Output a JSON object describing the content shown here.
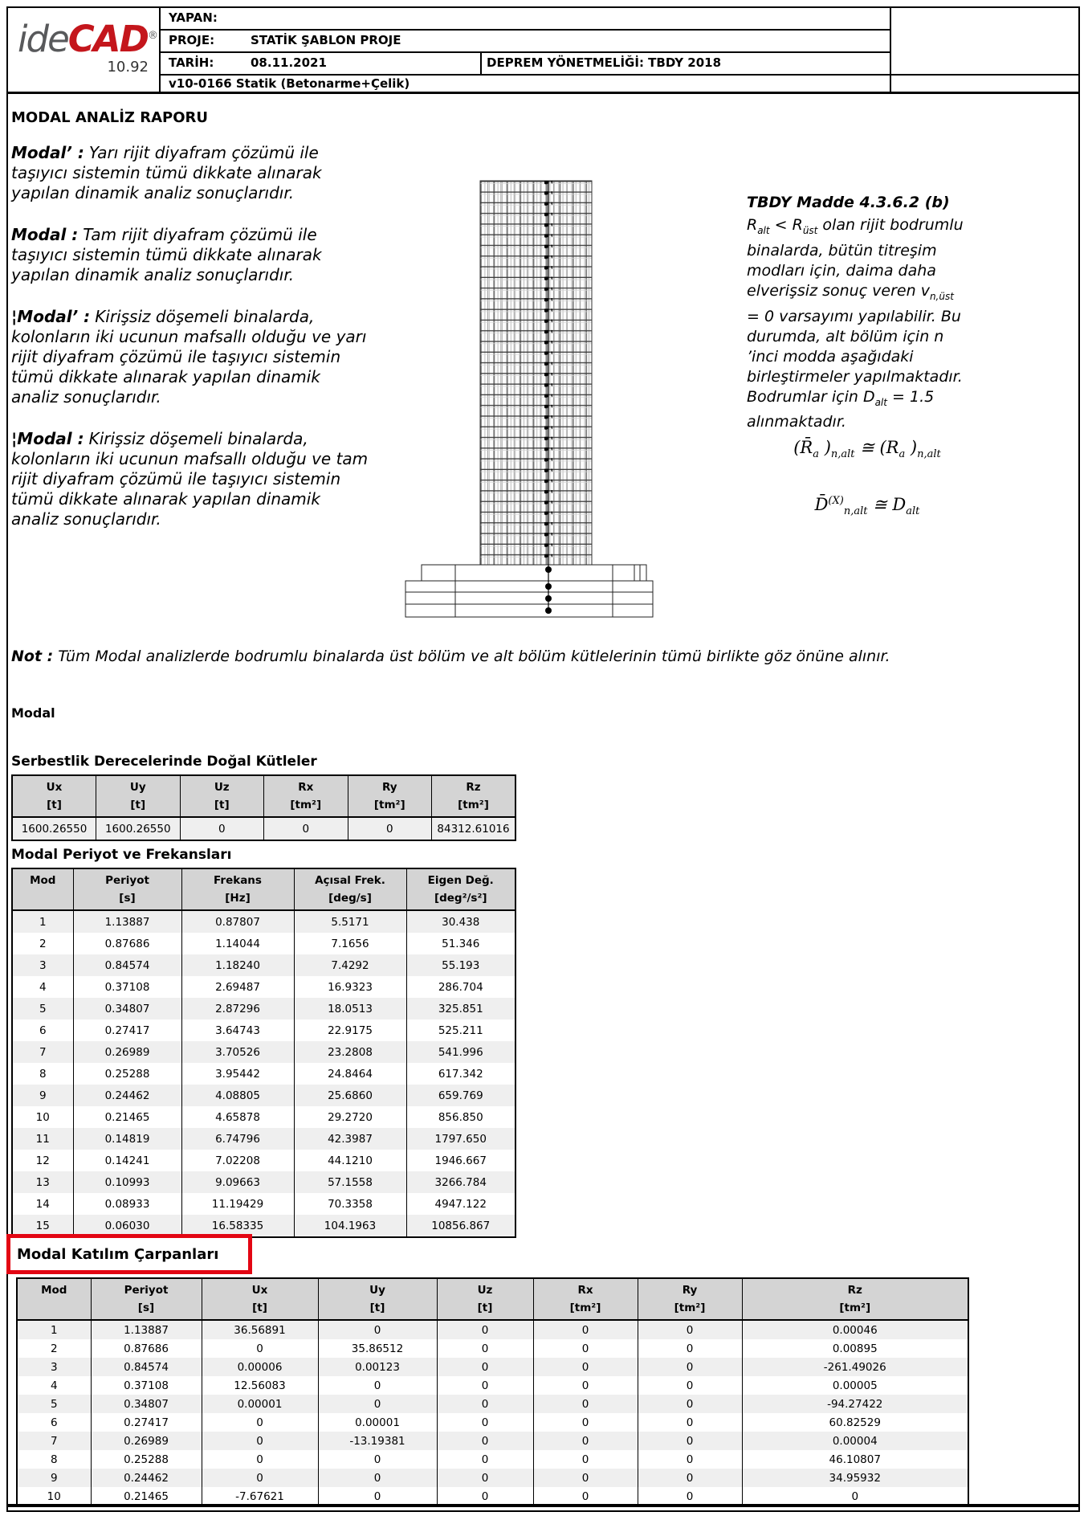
{
  "colors": {
    "accent_red": "#c4161c",
    "highlight_red": "#e30613",
    "table_header_gray": "#d4d4d4",
    "table_row_gray": "#efefef"
  },
  "header": {
    "logo_ide": "ide",
    "logo_cad": "CAD",
    "logo_registered": "®",
    "logo_version": "10.92",
    "yapan_label": "YAPAN:",
    "proje_label": "PROJE:",
    "proje_value": "STATİK ŞABLON PROJE",
    "tarih_label": "TARİH:",
    "tarih_value": "08.11.2021",
    "yonetmelik": "DEPREM YÖNETMELİĞİ: TBDY 2018",
    "version_line": "v10-0166 Statik (Betonarme+Çelik)"
  },
  "report": {
    "title": "MODAL ANALİZ RAPORU",
    "paragraphs": [
      {
        "lead": "Modal’ :",
        "text": "Yarı rijit diyafram çözümü ile taşıyıcı sistemin tümü dikkate alınarak yapılan dinamik analiz sonuçlarıdır."
      },
      {
        "lead": "Modal :",
        "text": "Tam rijit diyafram çözümü ile taşıyıcı sistemin tümü dikkate alınarak yapılan dinamik analiz sonuçlarıdır."
      },
      {
        "lead": "¦Modal’ :",
        "text": "Kirişsiz döşemeli binalarda, kolonların iki ucunun mafsallı olduğu ve yarı rijit diyafram çözümü ile taşıyıcı sistemin tümü dikkate alınarak yapılan dinamik analiz sonuçlarıdır."
      },
      {
        "lead": "¦Modal :",
        "text": "Kirişsiz döşemeli binalarda, kolonların iki ucunun mafsallı olduğu ve tam rijit diyafram çözümü ile taşıyıcı sistemin tümü dikkate alınarak yapılan dinamik analiz sonuçlarıdır."
      }
    ],
    "tbdy_title": "TBDY Madde 4.3.6.2 (b)",
    "tbdy_body": [
      {
        "t": "R"
      },
      {
        "sub": "alt"
      },
      {
        "t": " < R"
      },
      {
        "sub": "üst"
      },
      {
        "t": " olan rijit bodrumlu binalarda, bütün titreşim modları için, daima daha elverişsiz sonuç veren v"
      },
      {
        "sub": "n,üst"
      },
      {
        "t": " = 0 varsayımı yapılabilir. Bu durumda, alt bölüm için n ’inci modda aşağıdaki birleştirmeler yapılmaktadır. Bodrumlar için D"
      },
      {
        "sub": "alt"
      },
      {
        "t": " = 1.5 alınmaktadır."
      }
    ],
    "formula_1": [
      {
        "t": "(R̄"
      },
      {
        "sub": "a"
      },
      {
        "t": " )"
      },
      {
        "sub": "n,alt"
      },
      {
        "t": " ≅ (R"
      },
      {
        "sub": "a"
      },
      {
        "t": " )"
      },
      {
        "sub": "n,alt"
      }
    ],
    "formula_2": [
      {
        "t": "D̄"
      },
      {
        "sup": "(X)"
      },
      {
        "sub": "n,alt"
      },
      {
        "t": " ≅ D"
      },
      {
        "sub": "alt"
      }
    ],
    "note_lead": "Not :",
    "note_text": "Tüm Modal analizlerde bodrumlu binalarda üst bölüm ve alt bölüm kütlelerinin tümü birlikte göz önüne alınır.",
    "modal_heading": "Modal"
  },
  "tables": {
    "dogal_kutleler": {
      "title": "Serbestlik Derecelerinde Doğal Kütleler",
      "columns": [
        {
          "label": "Ux",
          "unit": "[t]"
        },
        {
          "label": "Uy",
          "unit": "[t]"
        },
        {
          "label": "Uz",
          "unit": "[t]"
        },
        {
          "label": "Rx",
          "unit": "[tm²]"
        },
        {
          "label": "Ry",
          "unit": "[tm²]"
        },
        {
          "label": "Rz",
          "unit": "[tm²]"
        }
      ],
      "rows": [
        [
          "1600.26550",
          "1600.26550",
          "0",
          "0",
          "0",
          "84312.61016"
        ]
      ]
    },
    "periyot_frekans": {
      "title": "Modal Periyot ve Frekansları",
      "columns": [
        {
          "label": "Mod",
          "unit": ""
        },
        {
          "label": "Periyot",
          "unit": "[s]"
        },
        {
          "label": "Frekans",
          "unit": "[Hz]"
        },
        {
          "label": "Açısal Frek.",
          "unit": "[deg/s]"
        },
        {
          "label": "Eigen Değ.",
          "unit": "[deg²/s²]"
        }
      ],
      "rows": [
        [
          "1",
          "1.13887",
          "0.87807",
          "5.5171",
          "30.438"
        ],
        [
          "2",
          "0.87686",
          "1.14044",
          "7.1656",
          "51.346"
        ],
        [
          "3",
          "0.84574",
          "1.18240",
          "7.4292",
          "55.193"
        ],
        [
          "4",
          "0.37108",
          "2.69487",
          "16.9323",
          "286.704"
        ],
        [
          "5",
          "0.34807",
          "2.87296",
          "18.0513",
          "325.851"
        ],
        [
          "6",
          "0.27417",
          "3.64743",
          "22.9175",
          "525.211"
        ],
        [
          "7",
          "0.26989",
          "3.70526",
          "23.2808",
          "541.996"
        ],
        [
          "8",
          "0.25288",
          "3.95442",
          "24.8464",
          "617.342"
        ],
        [
          "9",
          "0.24462",
          "4.08805",
          "25.6860",
          "659.769"
        ],
        [
          "10",
          "0.21465",
          "4.65878",
          "29.2720",
          "856.850"
        ],
        [
          "11",
          "0.14819",
          "6.74796",
          "42.3987",
          "1797.650"
        ],
        [
          "12",
          "0.14241",
          "7.02208",
          "44.1210",
          "1946.667"
        ],
        [
          "13",
          "0.10993",
          "9.09663",
          "57.1558",
          "3266.784"
        ],
        [
          "14",
          "0.08933",
          "11.19429",
          "70.3358",
          "4947.122"
        ],
        [
          "15",
          "0.06030",
          "16.58335",
          "104.1963",
          "10856.867"
        ]
      ]
    },
    "katilim_carpanlari": {
      "title": "Modal Katılım Çarpanları",
      "columns": [
        {
          "label": "Mod",
          "unit": ""
        },
        {
          "label": "Periyot",
          "unit": "[s]"
        },
        {
          "label": "Ux",
          "unit": "[t]"
        },
        {
          "label": "Uy",
          "unit": "[t]"
        },
        {
          "label": "Uz",
          "unit": "[t]"
        },
        {
          "label": "Rx",
          "unit": "[tm²]"
        },
        {
          "label": "Ry",
          "unit": "[tm²]"
        },
        {
          "label": "Rz",
          "unit": "[tm²]"
        }
      ],
      "rows": [
        [
          "1",
          "1.13887",
          "36.56891",
          "0",
          "0",
          "0",
          "0",
          "0.00046"
        ],
        [
          "2",
          "0.87686",
          "0",
          "35.86512",
          "0",
          "0",
          "0",
          "0.00895"
        ],
        [
          "3",
          "0.84574",
          "0.00006",
          "0.00123",
          "0",
          "0",
          "0",
          "-261.49026"
        ],
        [
          "4",
          "0.37108",
          "12.56083",
          "0",
          "0",
          "0",
          "0",
          "0.00005"
        ],
        [
          "5",
          "0.34807",
          "0.00001",
          "0",
          "0",
          "0",
          "0",
          "-94.27422"
        ],
        [
          "6",
          "0.27417",
          "0",
          "0.00001",
          "0",
          "0",
          "0",
          "60.82529"
        ],
        [
          "7",
          "0.26989",
          "0",
          "-13.19381",
          "0",
          "0",
          "0",
          "0.00004"
        ],
        [
          "8",
          "0.25288",
          "0",
          "0",
          "0",
          "0",
          "0",
          "46.10807"
        ],
        [
          "9",
          "0.24462",
          "0",
          "0",
          "0",
          "0",
          "0",
          "34.95932"
        ],
        [
          "10",
          "0.21465",
          "-7.67621",
          "0",
          "0",
          "0",
          "0",
          "0"
        ]
      ]
    }
  }
}
